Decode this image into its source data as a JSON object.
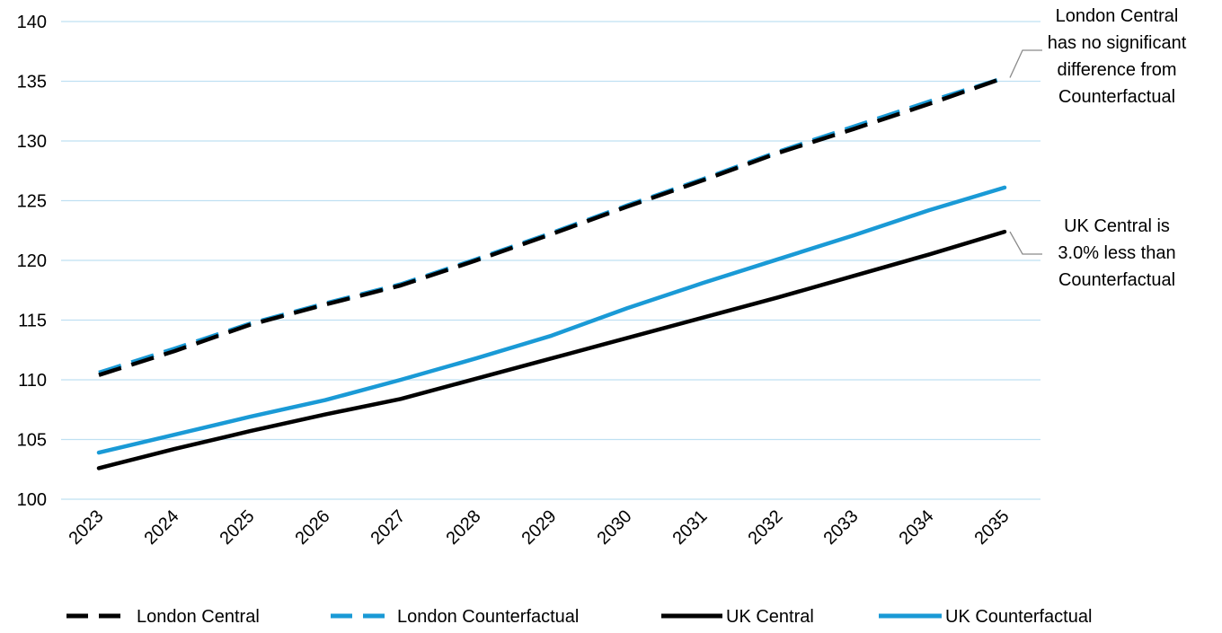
{
  "chart_data": {
    "type": "line",
    "title": "",
    "xlabel": "",
    "ylabel": "",
    "categories": [
      "2023",
      "2024",
      "2025",
      "2026",
      "2027",
      "2028",
      "2029",
      "2030",
      "2031",
      "2032",
      "2033",
      "2034",
      "2035"
    ],
    "ylim": [
      100,
      140
    ],
    "yticks": [
      100,
      105,
      110,
      115,
      120,
      125,
      130,
      135,
      140
    ],
    "grid": true,
    "legend_position": "bottom",
    "series": [
      {
        "name": "London Central",
        "color": "#000000",
        "dash": true,
        "values": [
          110.4,
          112.4,
          114.6,
          116.3,
          117.9,
          120.0,
          122.2,
          124.5,
          126.7,
          129.0,
          131.0,
          133.1,
          135.3
        ]
      },
      {
        "name": "London Counterfactual",
        "color": "#1a9ad6",
        "dash": true,
        "values": [
          110.6,
          112.6,
          114.7,
          116.4,
          118.0,
          120.1,
          122.3,
          124.6,
          126.8,
          129.1,
          131.2,
          133.3,
          135.3
        ]
      },
      {
        "name": "UK Central",
        "color": "#000000",
        "dash": false,
        "values": [
          102.6,
          104.2,
          105.7,
          107.1,
          108.4,
          110.1,
          111.8,
          113.5,
          115.2,
          116.9,
          118.7,
          120.5,
          122.4
        ]
      },
      {
        "name": "UK Counterfactual",
        "color": "#1a9ad6",
        "dash": false,
        "values": [
          103.9,
          105.4,
          106.9,
          108.3,
          110.0,
          111.8,
          113.7,
          116.0,
          118.1,
          120.1,
          122.1,
          124.2,
          126.1
        ]
      }
    ],
    "annotations": [
      {
        "lines": [
          "London Central",
          "has no significant",
          "difference from",
          "Counterfactual"
        ],
        "series_index": 1,
        "point_index": 12
      },
      {
        "lines": [
          "UK Central is",
          "3.0% less than",
          "Counterfactual"
        ],
        "series_index": 2,
        "point_index": 12
      }
    ]
  }
}
